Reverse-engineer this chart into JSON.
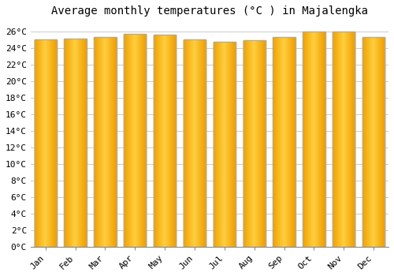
{
  "title": "Average monthly temperatures (°C ) in Majalengka",
  "months": [
    "Jan",
    "Feb",
    "Mar",
    "Apr",
    "May",
    "Jun",
    "Jul",
    "Aug",
    "Sep",
    "Oct",
    "Nov",
    "Dec"
  ],
  "values": [
    25.0,
    25.1,
    25.3,
    25.7,
    25.6,
    25.0,
    24.7,
    24.9,
    25.3,
    26.0,
    26.0,
    25.3
  ],
  "bar_color_center": "#FFD040",
  "bar_color_edge": "#F0A000",
  "bar_border_color": "#AAAAAA",
  "background_color": "#FFFFFF",
  "plot_bg_color": "#FFFFFF",
  "grid_color": "#CCCCCC",
  "ylim": [
    0,
    27
  ],
  "ytick_step": 2,
  "title_fontsize": 10,
  "tick_fontsize": 8,
  "tick_font": "monospace"
}
